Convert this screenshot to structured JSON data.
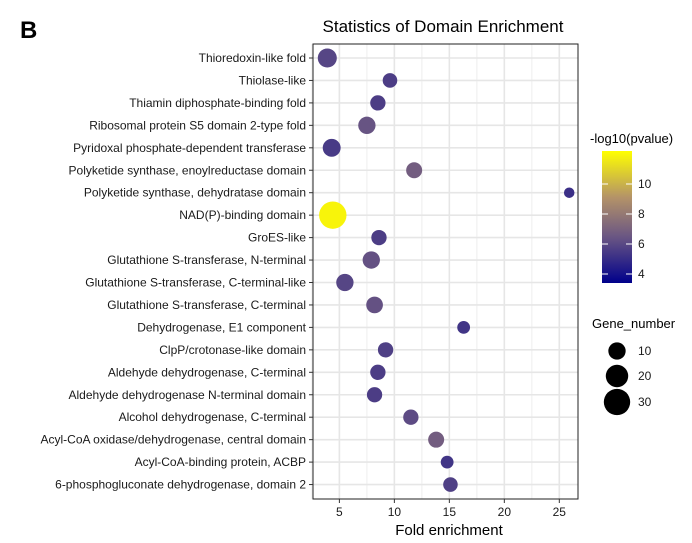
{
  "panel_label": "B",
  "chart_data": {
    "type": "scatter",
    "title": "Statistics of Domain Enrichment",
    "xlabel": "Fold enrichment",
    "ylabel": "",
    "xlim": [
      2.6,
      26.7
    ],
    "xticks": [
      5,
      10,
      15,
      20,
      25
    ],
    "grid": true,
    "points": [
      {
        "label": "Thioredoxin-like fold",
        "x": 3.9,
        "gene_number": 13,
        "neg_log10_p": 5.9
      },
      {
        "label": "Thiolase-like",
        "x": 9.6,
        "gene_number": 6,
        "neg_log10_p": 5.6
      },
      {
        "label": "Thiamin diphosphate-binding fold",
        "x": 8.5,
        "gene_number": 7,
        "neg_log10_p": 5.6
      },
      {
        "label": "Ribosomal protein S5 domain 2-type fold",
        "x": 7.5,
        "gene_number": 10,
        "neg_log10_p": 6.4
      },
      {
        "label": "Pyridoxal phosphate-dependent transferase",
        "x": 4.3,
        "gene_number": 11,
        "neg_log10_p": 5.5
      },
      {
        "label": "Polyketide synthase, enoylreductase domain",
        "x": 11.8,
        "gene_number": 8,
        "neg_log10_p": 6.8
      },
      {
        "label": "Polyketide synthase, dehydratase domain",
        "x": 25.9,
        "gene_number": 2,
        "neg_log10_p": 5.1
      },
      {
        "label": "NAD(P)-binding domain",
        "x": 4.4,
        "gene_number": 33,
        "neg_log10_p": 11.9
      },
      {
        "label": "GroES-like",
        "x": 8.6,
        "gene_number": 7,
        "neg_log10_p": 5.6
      },
      {
        "label": "Glutathione S-transferase, N-terminal",
        "x": 7.9,
        "gene_number": 10,
        "neg_log10_p": 6.3
      },
      {
        "label": "Glutathione S-transferase, C-terminal-like",
        "x": 5.5,
        "gene_number": 10,
        "neg_log10_p": 5.9
      },
      {
        "label": "Glutathione S-transferase, C-terminal",
        "x": 8.2,
        "gene_number": 9,
        "neg_log10_p": 6.3
      },
      {
        "label": "Dehydrogenase, E1 component",
        "x": 16.3,
        "gene_number": 4,
        "neg_log10_p": 5.3
      },
      {
        "label": "ClpP/crotonase-like domain",
        "x": 9.2,
        "gene_number": 7,
        "neg_log10_p": 5.7
      },
      {
        "label": "Aldehyde dehydrogenase, C-terminal",
        "x": 8.5,
        "gene_number": 7,
        "neg_log10_p": 5.6
      },
      {
        "label": "Aldehyde dehydrogenase N-terminal domain",
        "x": 8.2,
        "gene_number": 7,
        "neg_log10_p": 5.6
      },
      {
        "label": "Alcohol dehydrogenase, C-terminal",
        "x": 11.5,
        "gene_number": 7,
        "neg_log10_p": 6.1
      },
      {
        "label": "Acyl-CoA oxidase/dehydrogenase, central domain",
        "x": 13.8,
        "gene_number": 8,
        "neg_log10_p": 6.8
      },
      {
        "label": "Acyl-CoA-binding protein, ACBP",
        "x": 14.8,
        "gene_number": 4,
        "neg_log10_p": 5.3
      },
      {
        "label": "6-phosphogluconate dehydrogenase, domain 2",
        "x": 15.1,
        "gene_number": 6,
        "neg_log10_p": 5.7
      }
    ],
    "legend_color": {
      "title": "-log10(pvalue)",
      "range": [
        3.4,
        12.2
      ],
      "ticks": [
        4,
        6,
        8,
        10
      ],
      "colors": [
        "#00008b",
        "#6a5683",
        "#b49368",
        "#ffff00"
      ],
      "placement": "right"
    },
    "legend_size": {
      "title": "Gene_number",
      "values": [
        10,
        20,
        30
      ],
      "placement": "right"
    }
  }
}
